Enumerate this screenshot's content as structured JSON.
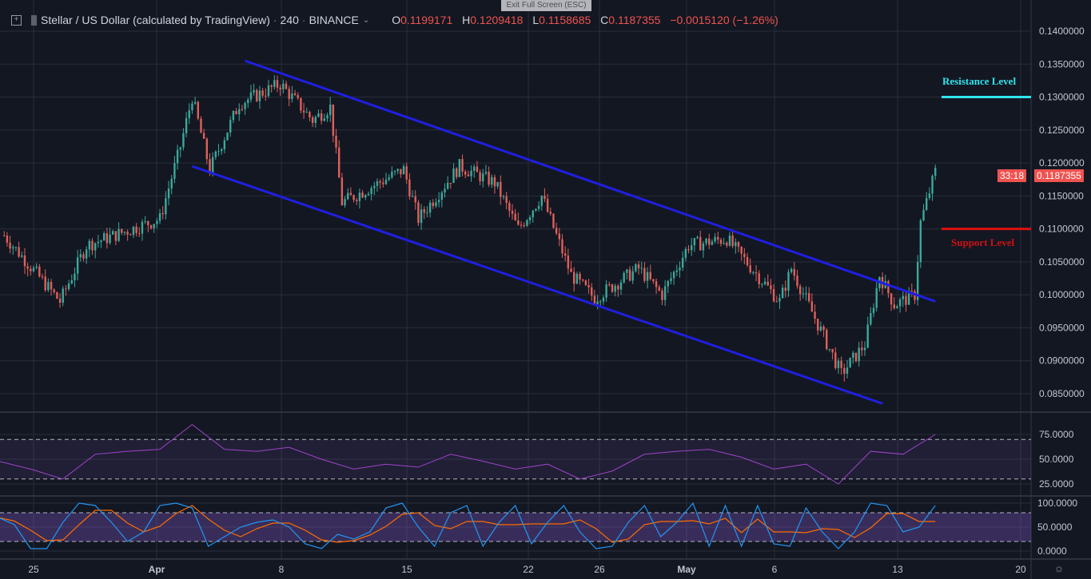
{
  "header": {
    "symbol_title": "Stellar / US Dollar (calculated by TradingView)",
    "interval": "240",
    "exchange": "BINANCE",
    "open_label": "O",
    "open": "0.1199171",
    "high_label": "H",
    "high": "0.1209418",
    "low_label": "L",
    "low": "0.1158685",
    "close_label": "C",
    "close": "0.1187355",
    "change": "−0.0015120 (−1.26%)"
  },
  "tooltip": "Exit Full Screen (ESC)",
  "price_box": {
    "price": "0.1187355",
    "countdown": "33:18"
  },
  "annotations": {
    "resistance_label": "Resistance Level",
    "support_label": "Support Level"
  },
  "colors": {
    "background": "#131722",
    "up": "#3ba99a",
    "down": "#e0605a",
    "channel": "#1f1fe0",
    "resistance": "#2ee6ee",
    "support": "#e01010",
    "rsi": "#a043c8",
    "stoch_k": "#2196f3",
    "stoch_d": "#ff6d00"
  },
  "chart_data": [
    {
      "type": "candlestick",
      "title": "Stellar / US Dollar (calculated by TradingView)",
      "x_ticks": [
        "25",
        "Apr",
        "8",
        "15",
        "22",
        "26",
        "May",
        "6",
        "13",
        "20"
      ],
      "y_ticks": [
        "0.1400000",
        "0.1350000",
        "0.1300000",
        "0.1250000",
        "0.1200000",
        "0.1150000",
        "0.1100000",
        "0.1050000",
        "0.1000000",
        "0.0950000",
        "0.0900000",
        "0.0850000"
      ],
      "ylim": [
        0.0815,
        0.1447
      ],
      "grid": true,
      "close_path": [
        {
          "t": "Mar 23 08:00",
          "p": 0.109
        },
        {
          "t": "Mar 26 12:00",
          "p": 0.099
        },
        {
          "t": "Mar 28 00:00",
          "p": 0.1075
        },
        {
          "t": "Apr 1 04:00",
          "p": 0.1115
        },
        {
          "t": "Apr 2 08:00",
          "p": 0.1225
        },
        {
          "t": "Apr 3 00:00",
          "p": 0.13
        },
        {
          "t": "Apr 4 00:00",
          "p": 0.119
        },
        {
          "t": "Apr 5 16:00",
          "p": 0.129
        },
        {
          "t": "Apr 8 00:00",
          "p": 0.132
        },
        {
          "t": "Apr 9 20:00",
          "p": 0.1265
        },
        {
          "t": "Apr 10 20:00",
          "p": 0.1285
        },
        {
          "t": "Apr 11 12:00",
          "p": 0.114
        },
        {
          "t": "Apr 15 00:00",
          "p": 0.119
        },
        {
          "t": "Apr 15 20:00",
          "p": 0.1115
        },
        {
          "t": "Apr 18 04:00",
          "p": 0.1195
        },
        {
          "t": "Apr 20 04:00",
          "p": 0.117
        },
        {
          "t": "Apr 21 12:00",
          "p": 0.11
        },
        {
          "t": "Apr 22 20:00",
          "p": 0.115
        },
        {
          "t": "Apr 24 12:00",
          "p": 0.103
        },
        {
          "t": "Apr 25 20:00",
          "p": 0.0995
        },
        {
          "t": "Apr 28 08:00",
          "p": 0.104
        },
        {
          "t": "Apr 29 16:00",
          "p": 0.1
        },
        {
          "t": "May 1 04:00",
          "p": 0.1075
        },
        {
          "t": "May 3 08:00",
          "p": 0.1085
        },
        {
          "t": "May 6 08:00",
          "p": 0.099
        },
        {
          "t": "May 7 00:00",
          "p": 0.104
        },
        {
          "t": "May 9 20:00",
          "p": 0.088
        },
        {
          "t": "May 11 04:00",
          "p": 0.0925
        },
        {
          "t": "May 12 00:00",
          "p": 0.103
        },
        {
          "t": "May 12 20:00",
          "p": 0.0985
        },
        {
          "t": "May 14 00:00",
          "p": 0.1
        },
        {
          "t": "May 14 08:00",
          "p": 0.111
        },
        {
          "t": "May 15 04:00",
          "p": 0.1187
        }
      ],
      "channel_upper": [
        {
          "t": "Apr 6 00:00",
          "p": 0.1355
        },
        {
          "t": "May 15 04:00",
          "p": 0.099
        }
      ],
      "channel_lower": [
        {
          "t": "Apr 3 00:00",
          "p": 0.1195
        },
        {
          "t": "May 12 04:00",
          "p": 0.0835
        }
      ],
      "resistance_level": 0.13,
      "support_level": 0.11
    },
    {
      "type": "line",
      "indicator": "RSI",
      "y_ticks": [
        "75.0000",
        "50.0000",
        "25.0000"
      ],
      "bands": [
        30,
        70
      ],
      "x_range": [
        "Mar 23 00:00",
        "May 15 04:00"
      ],
      "values": [
        48,
        40,
        30,
        55,
        58,
        60,
        85,
        60,
        58,
        62,
        50,
        40,
        45,
        42,
        55,
        48,
        40,
        45,
        30,
        38,
        55,
        58,
        60,
        52,
        40,
        45,
        25,
        58,
        55,
        75
      ]
    },
    {
      "type": "line",
      "indicator": "Stochastic RSI",
      "y_ticks": [
        "100.0000",
        "50.0000",
        "0.0000"
      ],
      "bands": [
        20,
        80
      ],
      "x_range": [
        "Mar 23 00:00",
        "May 15 04:00"
      ],
      "k_values": [
        70,
        55,
        5,
        5,
        60,
        100,
        95,
        60,
        20,
        40,
        95,
        100,
        90,
        10,
        30,
        50,
        60,
        65,
        50,
        15,
        5,
        35,
        25,
        40,
        90,
        100,
        50,
        10,
        80,
        95,
        10,
        60,
        95,
        15,
        60,
        95,
        40,
        5,
        10,
        60,
        95,
        30,
        60,
        100,
        10,
        95,
        10,
        95,
        15,
        10,
        90,
        40,
        5,
        40,
        100,
        95,
        40,
        50,
        95
      ]
    }
  ]
}
